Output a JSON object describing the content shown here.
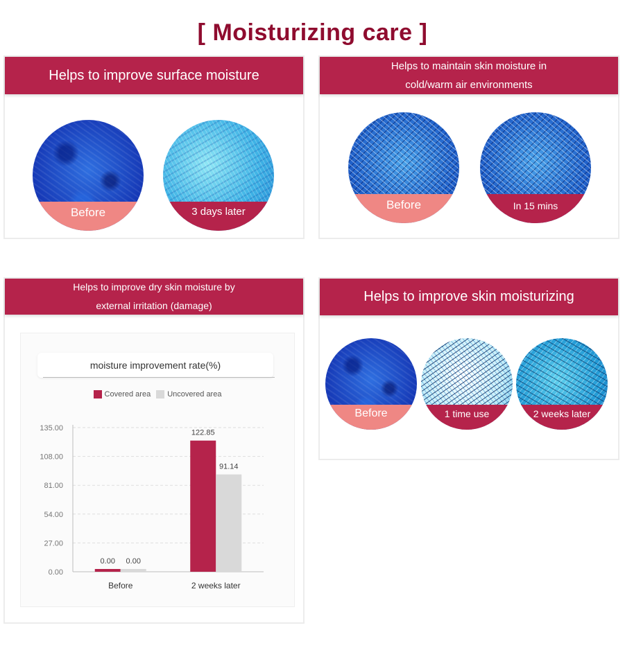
{
  "page_title": "[ Moisturizing care ]",
  "colors": {
    "title": "#8f0c2f",
    "band": "#b5234b",
    "before_caption": "#ef8784",
    "after_caption": "#b5234b",
    "uncovered": "#d9d9d9"
  },
  "panels": [
    {
      "header": "Helps to improve surface moisture",
      "images": [
        {
          "caption": "Before",
          "texture": "deep-blue"
        },
        {
          "caption": "3 days later",
          "texture": "light-blue"
        }
      ]
    },
    {
      "header": "Helps to maintain skin moisture in\ncold/warm air environments",
      "images": [
        {
          "caption": "Before",
          "texture": "cross-hatched-blue"
        },
        {
          "caption": "In 15 mins",
          "texture": "cross-hatched-blue"
        }
      ]
    },
    {
      "header": "Helps to improve dry skin moisture by\nexternal irritation (damage)"
    },
    {
      "header": "Helps to improve skin moisturizing",
      "images": [
        {
          "caption": "Before",
          "texture": "deep-blue"
        },
        {
          "caption": "1 time use",
          "texture": "white-blue"
        },
        {
          "caption": "2 weeks later",
          "texture": "teal-blue"
        }
      ]
    }
  ],
  "chart_data": {
    "type": "bar",
    "title": "moisture improvement rate(%)",
    "categories": [
      "Before",
      "2 weeks later"
    ],
    "series": [
      {
        "name": "Covered area",
        "color": "#b5234b",
        "values": [
          0.0,
          122.85
        ],
        "labels": [
          "0.00",
          "122.85"
        ]
      },
      {
        "name": "Uncovered area",
        "color": "#d9d9d9",
        "values": [
          0.0,
          91.14
        ],
        "labels": [
          "0.00",
          "91.14"
        ]
      }
    ],
    "yticks": [
      "0.00",
      "27.00",
      "54.00",
      "81.00",
      "108.00",
      "135.00"
    ],
    "ylim": [
      0,
      135
    ],
    "grid": true,
    "legend": "top-center"
  }
}
